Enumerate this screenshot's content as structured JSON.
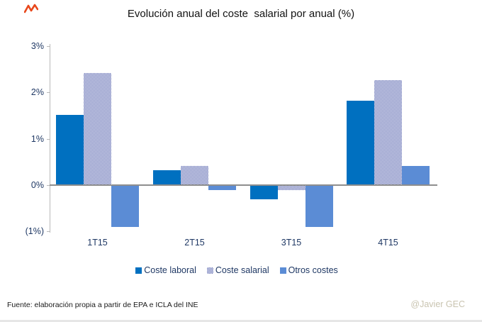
{
  "title": "Evolución anual del coste  salarial por anual (%)",
  "footer": {
    "source": "Fuente: elaboración propia a partir de EPA e ICLA del INE",
    "credit": "@Javier GEC"
  },
  "colors": {
    "axis_text": "#1f3864",
    "axis_line": "#b9b9b9",
    "baseline": "#8e8e8e",
    "footer_credit": "#c9c4b0",
    "corner_mark_red": "#e8481c"
  },
  "chart_data": {
    "type": "bar",
    "title": "Evolución anual del coste  salarial por anual (%)",
    "categories": [
      "1T15",
      "2T15",
      "3T15",
      "4T15"
    ],
    "series": [
      {
        "name": "Coste laboral",
        "fill": "solid",
        "color": "#0070c0",
        "values": [
          1.5,
          0.3,
          -0.3,
          1.8
        ]
      },
      {
        "name": "Coste salarial",
        "fill": "checker",
        "color": "#5b67b0",
        "values": [
          2.4,
          0.4,
          -0.1,
          2.25
        ]
      },
      {
        "name": "Otros costes",
        "fill": "solid",
        "color": "#5b8cd5",
        "values": [
          -0.9,
          -0.1,
          -0.9,
          0.4
        ]
      }
    ],
    "y_ticks": [
      "3%",
      "2%",
      "1%",
      "0%",
      "(1%)"
    ],
    "y_tick_values": [
      3,
      2,
      1,
      0,
      -1
    ],
    "ylim": [
      -1,
      3
    ],
    "xlabel": "",
    "ylabel": "",
    "grid": false,
    "legend_position": "bottom"
  }
}
